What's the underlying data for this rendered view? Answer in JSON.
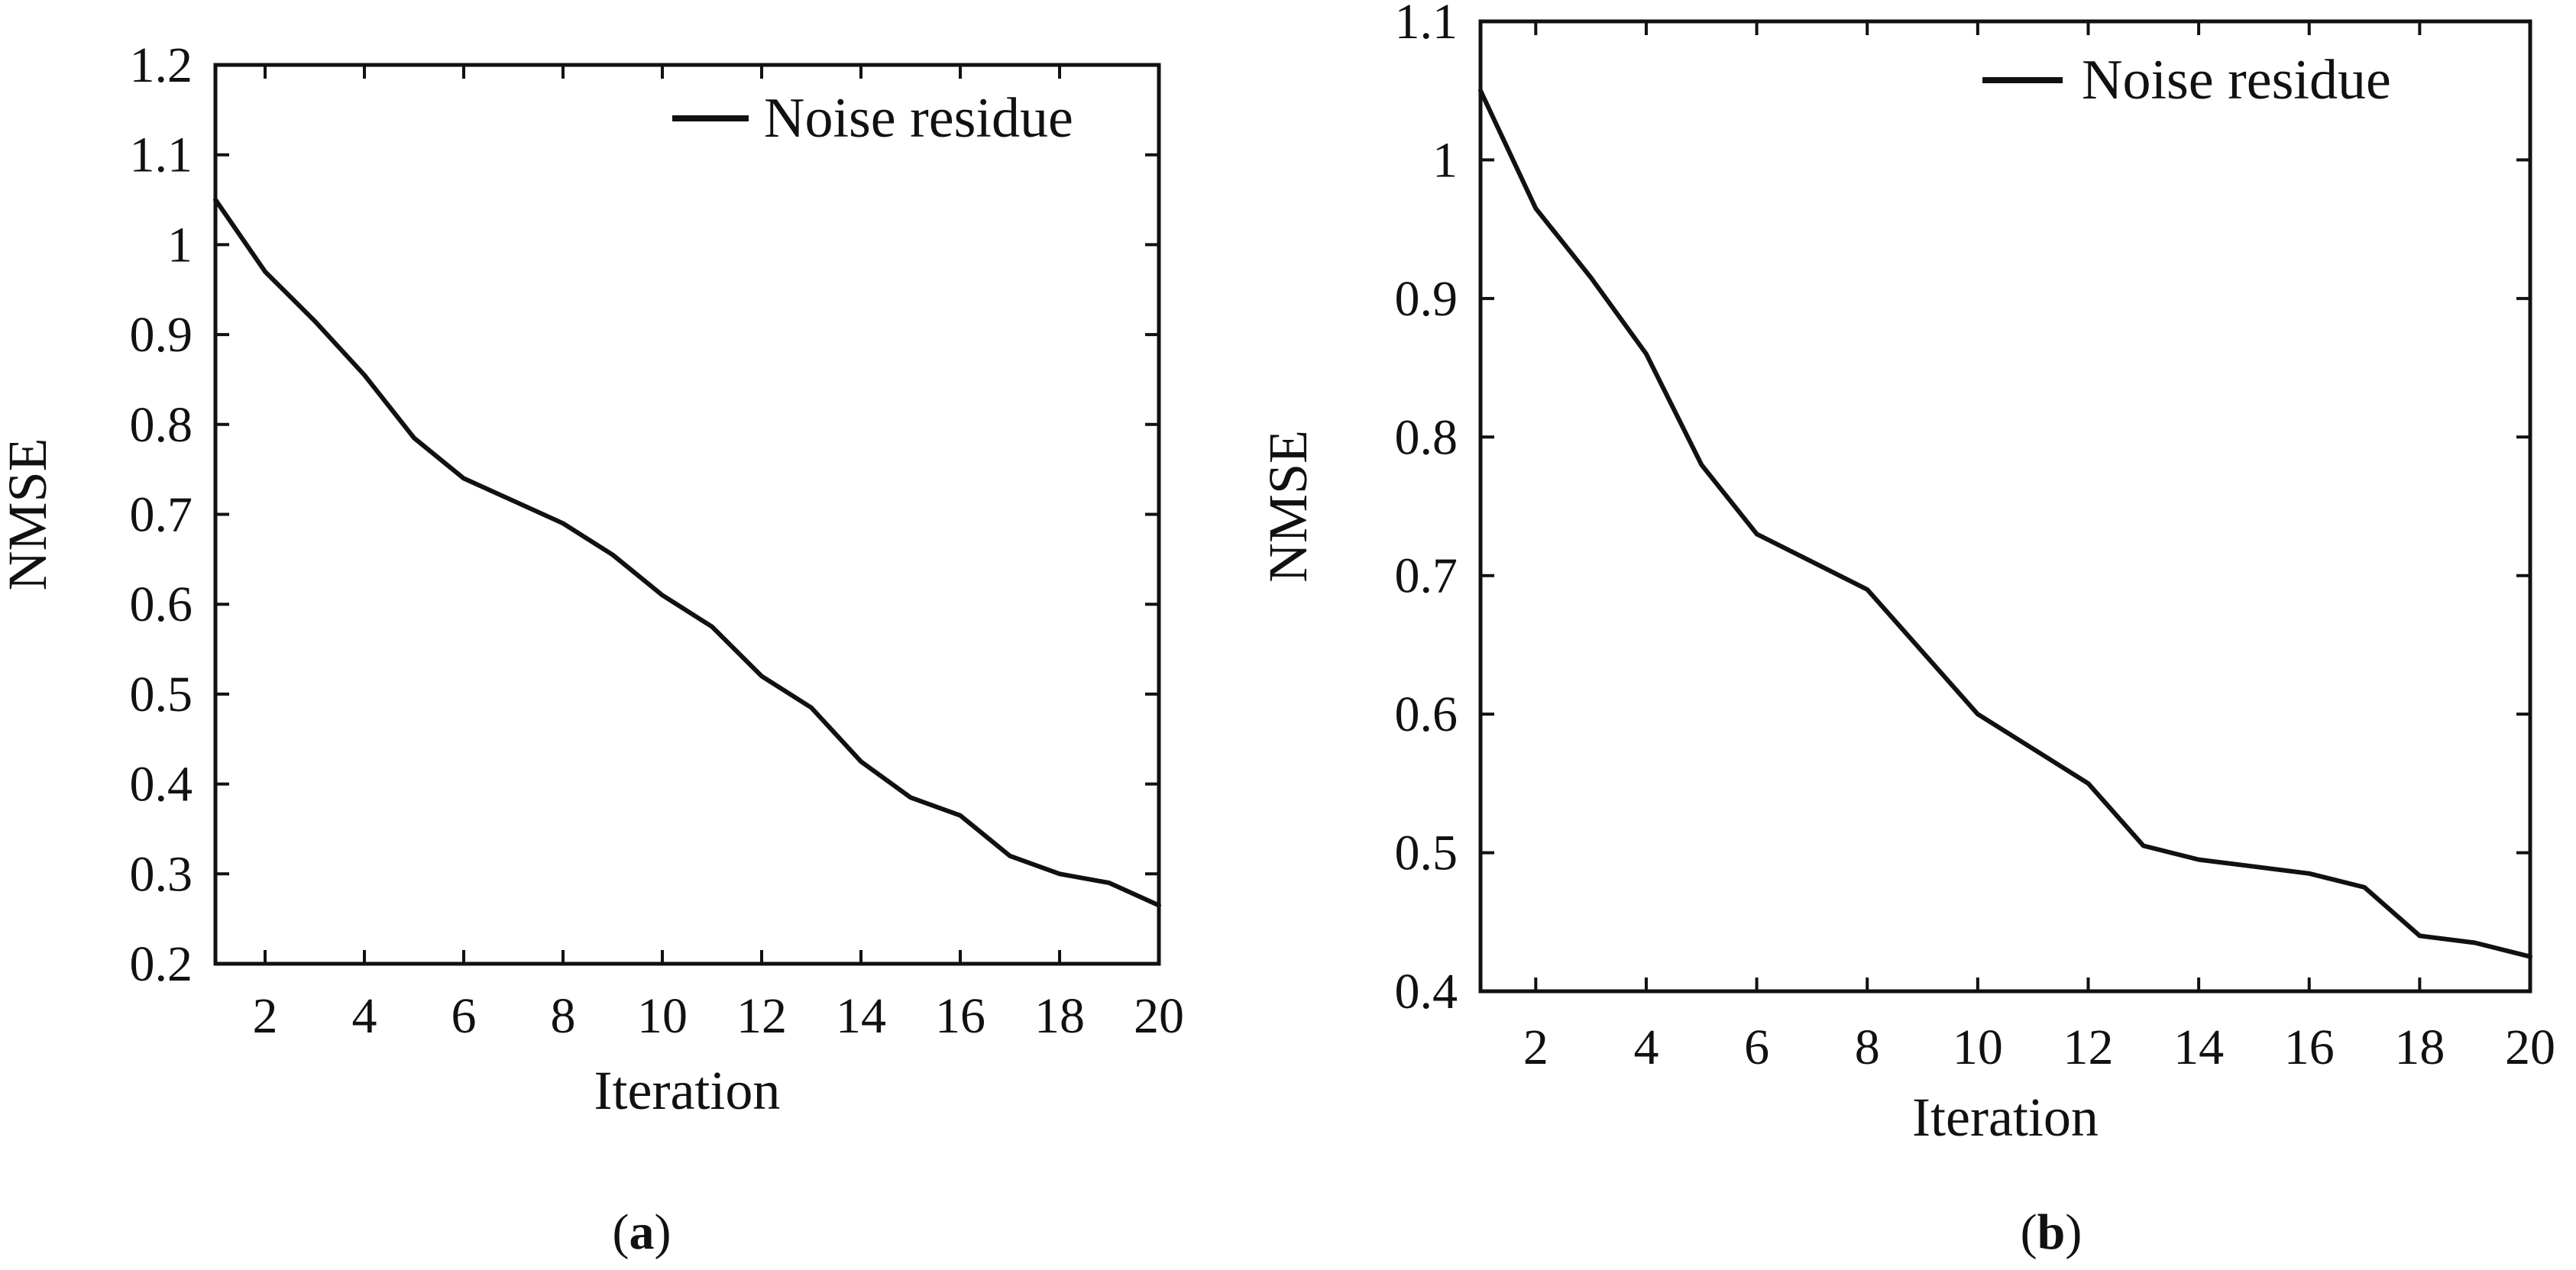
{
  "chart_data": [
    {
      "panel": "a",
      "type": "line",
      "xlabel": "Iteration",
      "ylabel": "NMSE",
      "xlim": [
        1,
        20
      ],
      "ylim": [
        0.2,
        1.2
      ],
      "xticks": [
        2,
        4,
        6,
        8,
        10,
        12,
        14,
        16,
        18,
        20
      ],
      "yticks": [
        0.2,
        0.3,
        0.4,
        0.5,
        0.6,
        0.7,
        0.8,
        0.9,
        1,
        1.1,
        1.2
      ],
      "ytick_labels": [
        "0.2",
        "0.3",
        "0.4",
        "0.5",
        "0.6",
        "0.7",
        "0.8",
        "0.9",
        "1",
        "1.1",
        "1.2"
      ],
      "legend_position": "top-right",
      "series": [
        {
          "name": "Noise residue",
          "x": [
            1,
            2,
            3,
            4,
            5,
            6,
            7,
            8,
            9,
            10,
            11,
            12,
            13,
            14,
            15,
            16,
            17,
            18,
            19,
            20
          ],
          "values": [
            1.05,
            0.97,
            0.915,
            0.855,
            0.785,
            0.74,
            0.715,
            0.69,
            0.655,
            0.61,
            0.575,
            0.52,
            0.485,
            0.425,
            0.385,
            0.365,
            0.32,
            0.3,
            0.29,
            0.265
          ]
        }
      ]
    },
    {
      "panel": "b",
      "type": "line",
      "xlabel": "Iteration",
      "ylabel": "NMSE",
      "xlim": [
        1,
        20
      ],
      "ylim": [
        0.4,
        1.1
      ],
      "xticks": [
        2,
        4,
        6,
        8,
        10,
        12,
        14,
        16,
        18,
        20
      ],
      "yticks": [
        0.4,
        0.5,
        0.6,
        0.7,
        0.8,
        0.9,
        1,
        1.1
      ],
      "ytick_labels": [
        "0.4",
        "0.5",
        "0.6",
        "0.7",
        "0.8",
        "0.9",
        "1",
        "1.1"
      ],
      "legend_position": "top-right",
      "series": [
        {
          "name": "Noise residue",
          "x": [
            1,
            2,
            3,
            4,
            5,
            6,
            7,
            8,
            9,
            10,
            11,
            12,
            13,
            14,
            15,
            16,
            17,
            18,
            19,
            20
          ],
          "values": [
            1.05,
            0.965,
            0.915,
            0.86,
            0.78,
            0.73,
            0.71,
            0.69,
            0.645,
            0.6,
            0.575,
            0.55,
            0.505,
            0.495,
            0.49,
            0.485,
            0.475,
            0.44,
            0.435,
            0.425
          ]
        }
      ]
    }
  ],
  "captions": [
    {
      "open": "(",
      "label": "a",
      "close": ")"
    },
    {
      "open": "(",
      "label": "b",
      "close": ")"
    }
  ],
  "colors": {
    "line": "#111111",
    "axis": "#111111",
    "background": "#ffffff"
  }
}
